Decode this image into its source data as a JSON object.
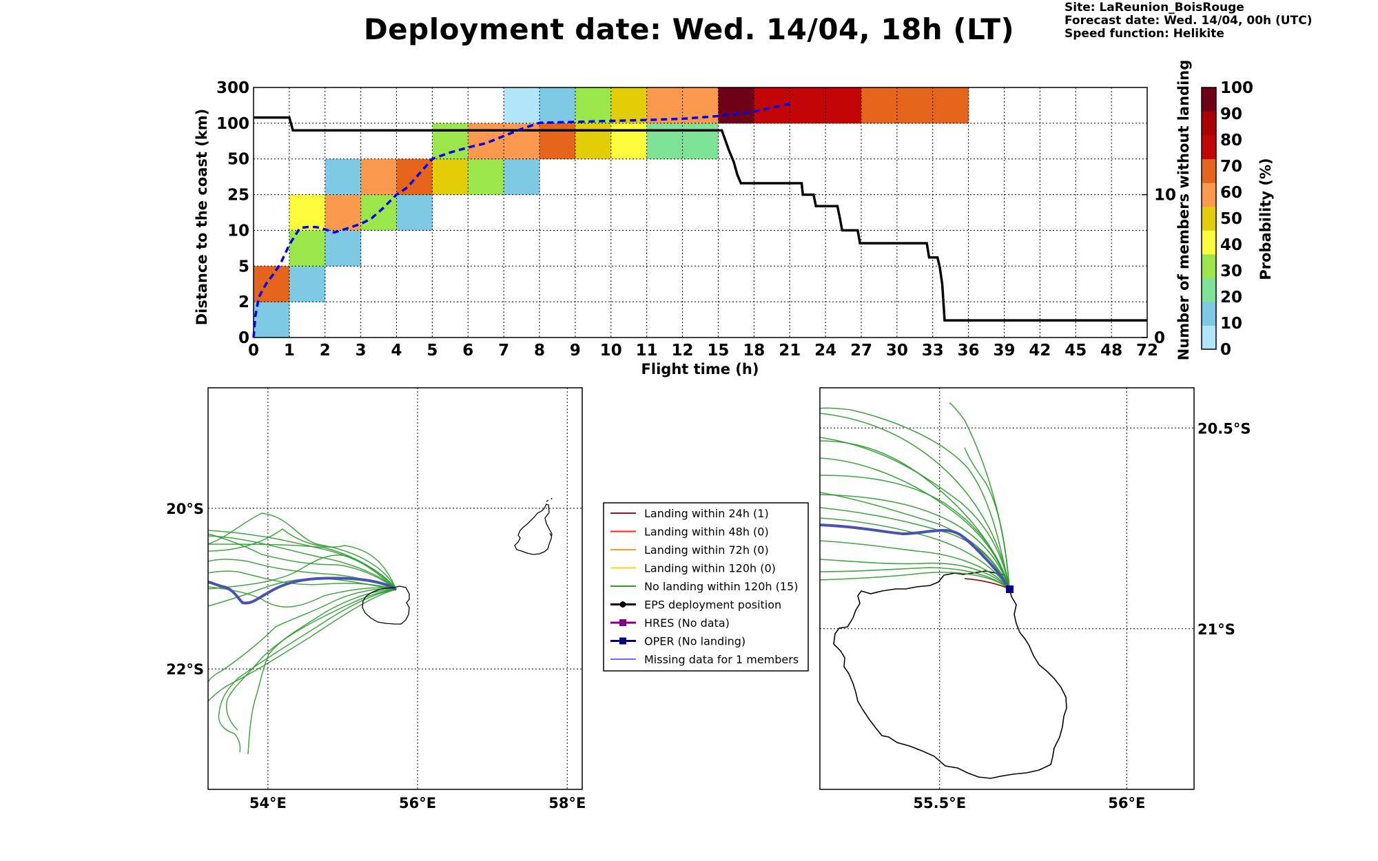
{
  "header": {
    "title": "Deployment date: Wed. 14/04, 18h (LT)",
    "site": "Site: LaReunion_BoisRouge",
    "forecast": "Forecast date: Wed. 14/04, 00h (UTC)",
    "speed": "Speed function: Helikite"
  },
  "chart_data": [
    {
      "type": "heatmap",
      "xlabel": "Flight time (h)",
      "ylabel": "Distance to the coast (km)",
      "y2label": "Number of members without landing",
      "colorbar_label": "Probability (%)",
      "x_ticks": [
        "0",
        "1",
        "2",
        "3",
        "4",
        "5",
        "6",
        "7",
        "8",
        "9",
        "10",
        "11",
        "12",
        "15",
        "18",
        "21",
        "24",
        "27",
        "30",
        "33",
        "36",
        "39",
        "42",
        "45",
        "48",
        "72"
      ],
      "y_ticks": [
        "0",
        "2",
        "5",
        "10",
        "25",
        "50",
        "100",
        "300"
      ],
      "y2_ticks": [
        "0",
        "10"
      ],
      "y2lim": [
        0,
        17.5
      ],
      "colorbar": {
        "ticks": [
          "0",
          "10",
          "20",
          "30",
          "40",
          "50",
          "60",
          "70",
          "80",
          "90",
          "100"
        ],
        "colors": [
          "#b3e5fa",
          "#7ecae4",
          "#7fe397",
          "#9be74b",
          "#fdfd3c",
          "#e3cd06",
          "#fb9a4e",
          "#e5651c",
          "#c20606",
          "#aa0000",
          "#6e0017"
        ]
      },
      "cells": [
        {
          "x": 0,
          "y": 0,
          "p": 10
        },
        {
          "x": 0,
          "y": 1,
          "p": 70
        },
        {
          "x": 1,
          "y": 1,
          "p": 10
        },
        {
          "x": 1,
          "y": 2,
          "p": 30
        },
        {
          "x": 1,
          "y": 3,
          "p": 40
        },
        {
          "x": 2,
          "y": 2,
          "p": 10
        },
        {
          "x": 2,
          "y": 3,
          "p": 60
        },
        {
          "x": 2,
          "y": 4,
          "p": 10
        },
        {
          "x": 3,
          "y": 3,
          "p": 30
        },
        {
          "x": 3,
          "y": 4,
          "p": 60
        },
        {
          "x": 4,
          "y": 3,
          "p": 10
        },
        {
          "x": 4,
          "y": 4,
          "p": 70
        },
        {
          "x": 5,
          "y": 4,
          "p": 50
        },
        {
          "x": 5,
          "y": 5,
          "p": 30
        },
        {
          "x": 6,
          "y": 4,
          "p": 30
        },
        {
          "x": 6,
          "y": 5,
          "p": 60
        },
        {
          "x": 7,
          "y": 4,
          "p": 10
        },
        {
          "x": 7,
          "y": 5,
          "p": 60
        },
        {
          "x": 7,
          "y": 6,
          "p": 0
        },
        {
          "x": 8,
          "y": 5,
          "p": 70
        },
        {
          "x": 8,
          "y": 6,
          "p": 10
        },
        {
          "x": 9,
          "y": 5,
          "p": 50
        },
        {
          "x": 9,
          "y": 6,
          "p": 30
        },
        {
          "x": 10,
          "y": 5,
          "p": 40
        },
        {
          "x": 10,
          "y": 6,
          "p": 50
        },
        {
          "x": 11,
          "y": 5,
          "p": 20
        },
        {
          "x": 11,
          "y": 6,
          "p": 60
        },
        {
          "x": 12,
          "y": 5,
          "p": 20
        },
        {
          "x": 12,
          "y": 6,
          "p": 60
        },
        {
          "x": 13,
          "y": 6,
          "p": 100
        },
        {
          "x": 14,
          "y": 6,
          "p": 80
        },
        {
          "x": 15,
          "y": 6,
          "p": 80
        },
        {
          "x": 16,
          "y": 6,
          "p": 80
        },
        {
          "x": 17,
          "y": 6,
          "p": 70
        },
        {
          "x": 18,
          "y": 6,
          "p": 70
        },
        {
          "x": 19,
          "y": 6,
          "p": 70
        }
      ],
      "members_without_landing": [
        {
          "t": 0,
          "n": 15.4
        },
        {
          "t": 1,
          "n": 15.4
        },
        {
          "t": 1.1,
          "n": 14.5
        },
        {
          "t": 15.3,
          "n": 14.5
        },
        {
          "t": 15.6,
          "n": 13.8
        },
        {
          "t": 15.9,
          "n": 13.1
        },
        {
          "t": 16.3,
          "n": 12.3
        },
        {
          "t": 16.6,
          "n": 11.4
        },
        {
          "t": 16.9,
          "n": 10.8
        },
        {
          "t": 22.0,
          "n": 10.8
        },
        {
          "t": 22.1,
          "n": 10.0
        },
        {
          "t": 23.0,
          "n": 10.0
        },
        {
          "t": 23.2,
          "n": 9.2
        },
        {
          "t": 25.0,
          "n": 9.2
        },
        {
          "t": 25.2,
          "n": 8.4
        },
        {
          "t": 25.4,
          "n": 7.5
        },
        {
          "t": 26.7,
          "n": 7.5
        },
        {
          "t": 26.9,
          "n": 6.6
        },
        {
          "t": 32.5,
          "n": 6.6
        },
        {
          "t": 32.7,
          "n": 5.6
        },
        {
          "t": 33.4,
          "n": 5.6
        },
        {
          "t": 33.6,
          "n": 4.9
        },
        {
          "t": 33.8,
          "n": 3.7
        },
        {
          "t": 34.0,
          "n": 1.2
        },
        {
          "t": 72,
          "n": 1.2
        }
      ],
      "oper_distance_km": [
        {
          "t": 0,
          "d": 0
        },
        {
          "t": 0.05,
          "d": 1.2
        },
        {
          "t": 0.15,
          "d": 2.4
        },
        {
          "t": 0.35,
          "d": 3.5
        },
        {
          "t": 0.55,
          "d": 4.3
        },
        {
          "t": 0.75,
          "d": 5.3
        },
        {
          "t": 1.0,
          "d": 8.0
        },
        {
          "t": 1.3,
          "d": 11.0
        },
        {
          "t": 1.5,
          "d": 11.4
        },
        {
          "t": 1.75,
          "d": 11.4
        },
        {
          "t": 2.0,
          "d": 10.4
        },
        {
          "t": 2.25,
          "d": 9.7
        },
        {
          "t": 2.5,
          "d": 10.2
        },
        {
          "t": 3.0,
          "d": 12.7
        },
        {
          "t": 3.3,
          "d": 15.0
        },
        {
          "t": 3.6,
          "d": 19.0
        },
        {
          "t": 4.0,
          "d": 25.0
        },
        {
          "t": 4.3,
          "d": 30.0
        },
        {
          "t": 5.0,
          "d": 50.0
        },
        {
          "t": 5.5,
          "d": 59.0
        },
        {
          "t": 6.0,
          "d": 66.0
        },
        {
          "t": 6.5,
          "d": 72.0
        },
        {
          "t": 7.0,
          "d": 82.0
        },
        {
          "t": 7.5,
          "d": 92.0
        },
        {
          "t": 8.0,
          "d": 102.0
        },
        {
          "t": 9.0,
          "d": 107.0
        },
        {
          "t": 10.0,
          "d": 113.0
        },
        {
          "t": 11.0,
          "d": 118.0
        },
        {
          "t": 12.0,
          "d": 125.0
        },
        {
          "t": 15.0,
          "d": 140.0
        },
        {
          "t": 18.0,
          "d": 165.0
        },
        {
          "t": 21.0,
          "d": 209.0
        }
      ]
    },
    {
      "type": "map",
      "x_ticks": [
        "54°E",
        "56°E",
        "58°E"
      ],
      "y_ticks": [
        "20°S",
        "22°S"
      ],
      "lon_range": [
        53.2,
        58.2
      ],
      "lat_range": [
        -23.5,
        -18.5
      ]
    },
    {
      "type": "map",
      "x_ticks": [
        "55.5°E",
        "56°E"
      ],
      "y_ticks": [
        "20.5°S",
        "21°S"
      ],
      "lon_range": [
        55.18,
        56.18
      ],
      "lat_range": [
        -21.4,
        -20.4
      ]
    }
  ],
  "legend": {
    "items": [
      {
        "label": "Landing within 24h (1)",
        "color": "#8b1a1a",
        "marker": "none"
      },
      {
        "label": "Landing within 48h (0)",
        "color": "#ff2020",
        "marker": "none"
      },
      {
        "label": "Landing within 72h (0)",
        "color": "#ff9a1a",
        "marker": "none"
      },
      {
        "label": "Landing within 120h (0)",
        "color": "#ffd21a",
        "marker": "none"
      },
      {
        "label": "No landing within 120h (15)",
        "color": "#2e9a2e",
        "marker": "none"
      },
      {
        "label": "EPS deployment position",
        "color": "#000000",
        "marker": "circle"
      },
      {
        "label": "HRES (No data)",
        "color": "#800080",
        "marker": "square"
      },
      {
        "label": "OPER (No landing)",
        "color": "#000080",
        "marker": "square"
      },
      {
        "label": "Missing data for 1 members",
        "color": "#6b6bff",
        "marker": "none"
      }
    ]
  }
}
